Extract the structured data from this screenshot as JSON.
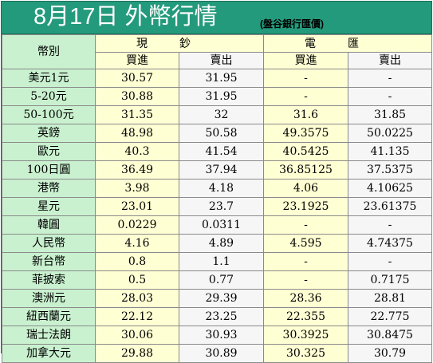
{
  "title": {
    "main": "8月17日 外幣行情",
    "source": "(盤谷銀行匯價)"
  },
  "columns": {
    "currency": "幣別",
    "cash": "現鈔",
    "telegraphic": "電匯",
    "buy": "買進",
    "sell": "賣出"
  },
  "rows": [
    {
      "currency": "美元1元",
      "cash_buy": "30.57",
      "cash_sell": "31.95",
      "tt_buy": "-",
      "tt_sell": "-"
    },
    {
      "currency": "5-20元",
      "cash_buy": "30.88",
      "cash_sell": "31.95",
      "tt_buy": "-",
      "tt_sell": "-"
    },
    {
      "currency": "50-100元",
      "cash_buy": "31.35",
      "cash_sell": "32",
      "tt_buy": "31.6",
      "tt_sell": "31.85"
    },
    {
      "currency": "英鎊",
      "cash_buy": "48.98",
      "cash_sell": "50.58",
      "tt_buy": "49.3575",
      "tt_sell": "50.0225"
    },
    {
      "currency": "歐元",
      "cash_buy": "40.3",
      "cash_sell": "41.54",
      "tt_buy": "40.5425",
      "tt_sell": "41.135"
    },
    {
      "currency": "100日圓",
      "cash_buy": "36.49",
      "cash_sell": "37.94",
      "tt_buy": "36.85125",
      "tt_sell": "37.5375"
    },
    {
      "currency": "港幣",
      "cash_buy": "3.98",
      "cash_sell": "4.18",
      "tt_buy": "4.06",
      "tt_sell": "4.10625"
    },
    {
      "currency": "星元",
      "cash_buy": "23.01",
      "cash_sell": "23.7",
      "tt_buy": "23.1925",
      "tt_sell": "23.61375"
    },
    {
      "currency": "韓圓",
      "cash_buy": "0.0229",
      "cash_sell": "0.0311",
      "tt_buy": "-",
      "tt_sell": "-"
    },
    {
      "currency": "人民幣",
      "cash_buy": "4.16",
      "cash_sell": "4.89",
      "tt_buy": "4.595",
      "tt_sell": "4.74375"
    },
    {
      "currency": "新台幣",
      "cash_buy": "0.8",
      "cash_sell": "1.1",
      "tt_buy": "-",
      "tt_sell": "-"
    },
    {
      "currency": "菲披索",
      "cash_buy": "0.5",
      "cash_sell": "0.77",
      "tt_buy": "-",
      "tt_sell": "0.7175"
    },
    {
      "currency": "澳洲元",
      "cash_buy": "28.03",
      "cash_sell": "29.39",
      "tt_buy": "28.36",
      "tt_sell": "28.81"
    },
    {
      "currency": "紐西蘭元",
      "cash_buy": "22.12",
      "cash_sell": "23.25",
      "tt_buy": "22.355",
      "tt_sell": "22.775"
    },
    {
      "currency": "瑞士法朗",
      "cash_buy": "30.06",
      "cash_sell": "30.93",
      "tt_buy": "30.3925",
      "tt_sell": "30.8475"
    },
    {
      "currency": "加拿大元",
      "cash_buy": "29.88",
      "cash_sell": "30.89",
      "tt_buy": "30.325",
      "tt_sell": "30.79"
    }
  ],
  "colors": {
    "title_background": "#249a7c",
    "label_column": "#c9f1cf",
    "buy_column": "#ffffd4",
    "sell_column": "#f6f6f6"
  }
}
